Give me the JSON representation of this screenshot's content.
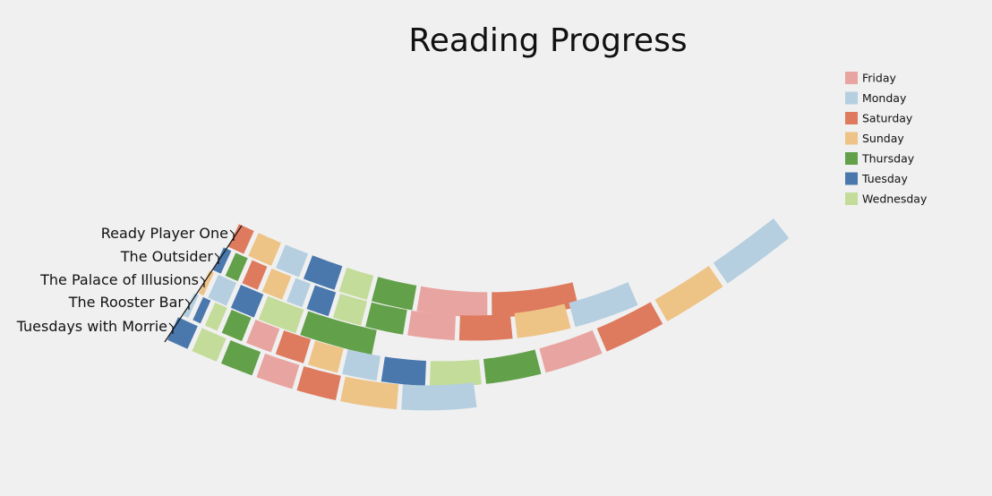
{
  "chart_data": {
    "type": "stacked-ribbon",
    "title": "Reading Progress",
    "books": [
      "Ready Player One",
      "The Outsider",
      "The Palace of Illusions",
      "The Rooster Bar",
      "Tuesdays with Morrie"
    ],
    "legend": {
      "position": "top-right",
      "days": [
        "Friday",
        "Monday",
        "Saturday",
        "Sunday",
        "Thursday",
        "Tuesday",
        "Wednesday"
      ],
      "colors": {
        "Friday": "#e8a4a0",
        "Monday": "#b5cfe0",
        "Saturday": "#de7a5e",
        "Sunday": "#eec386",
        "Thursday": "#62a049",
        "Tuesday": "#4a78ad",
        "Wednesday": "#c3dc9a"
      }
    },
    "sessions": [
      {
        "book": "Ready Player One",
        "days": [
          "Saturday",
          "Sunday",
          "Monday",
          "Tuesday",
          "Wednesday",
          "Thursday",
          "Friday",
          "Saturday"
        ],
        "widths": [
          1,
          1.5,
          1.5,
          2,
          1.8,
          2.6,
          4.5,
          5.5
        ]
      },
      {
        "book": "The Outsider",
        "days": [
          "Tuesday",
          "Thursday",
          "Saturday",
          "Sunday",
          "Monday",
          "Tuesday",
          "Wednesday",
          "Thursday",
          "Friday",
          "Saturday",
          "Sunday",
          "Monday"
        ],
        "widths": [
          0.5,
          0.8,
          1,
          1.3,
          1,
          1.4,
          1.8,
          2.4,
          3,
          3.4,
          3.4,
          4
        ]
      },
      {
        "book": "The Palace of Illusions",
        "days": [
          "Sunday",
          "Monday",
          "Tuesday",
          "Wednesday",
          "Thursday"
        ],
        "widths": [
          0.3,
          1.2,
          1.5,
          2.4,
          4.6
        ]
      },
      {
        "book": "The Rooster Bar",
        "days": [
          "Monday",
          "Tuesday",
          "Wednesday",
          "Thursday",
          "Friday",
          "Saturday",
          "Sunday",
          "Monday",
          "Tuesday",
          "Wednesday",
          "Thursday",
          "Friday",
          "Saturday",
          "Sunday",
          "Monday"
        ],
        "widths": [
          0.3,
          0.5,
          0.8,
          1.3,
          1.6,
          1.8,
          1.9,
          2.2,
          2.8,
          3.3,
          3.5,
          3.6,
          3.6,
          3.6,
          4
        ]
      },
      {
        "book": "Tuesdays with Morrie",
        "days": [
          "Tuesday",
          "Wednesday",
          "Thursday",
          "Friday",
          "Saturday",
          "Sunday",
          "Monday"
        ],
        "widths": [
          1.3,
          1.6,
          2,
          2.3,
          2.5,
          3.6,
          4.8
        ]
      }
    ]
  }
}
